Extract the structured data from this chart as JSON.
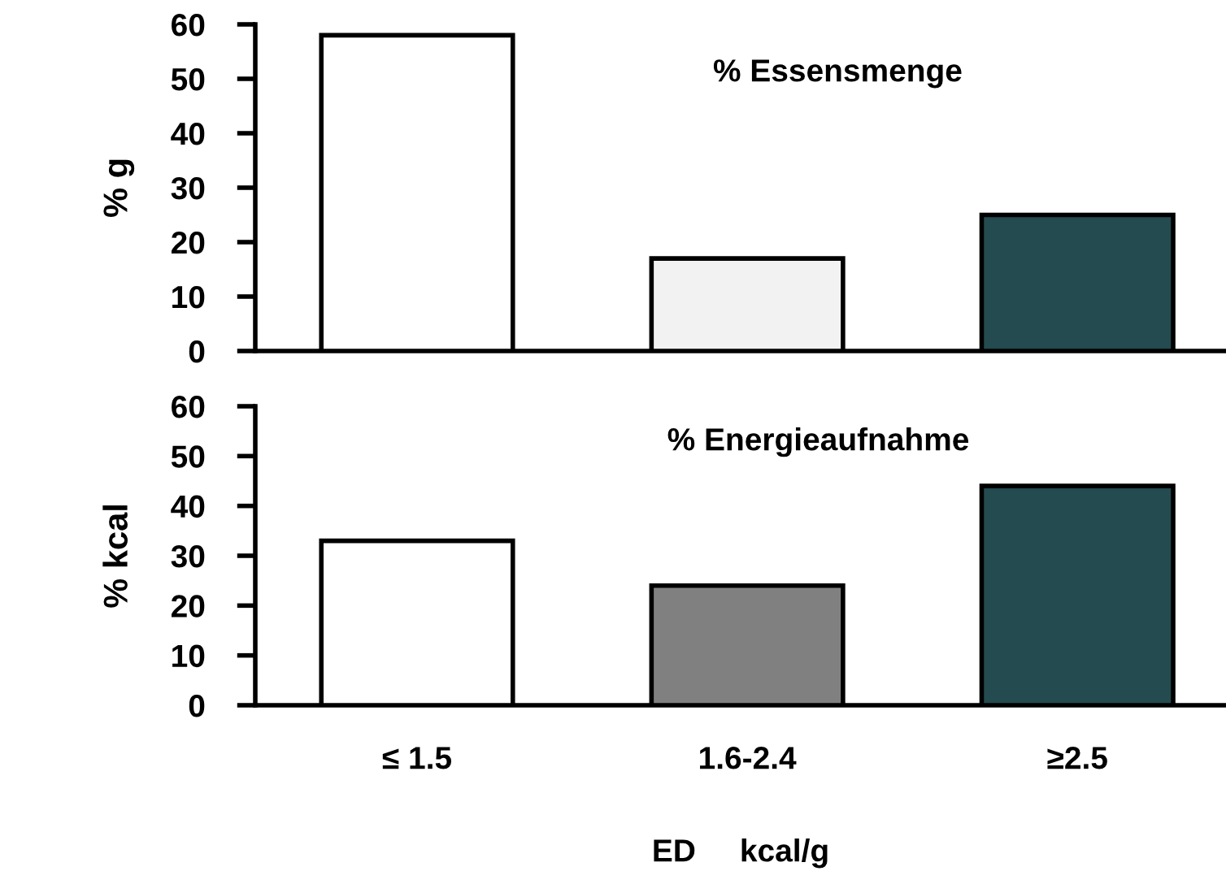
{
  "chart_data": [
    {
      "type": "bar",
      "title": "% Essensmenge",
      "ylabel": "% g",
      "categories": [
        null,
        null,
        null
      ],
      "values": [
        58,
        17,
        25
      ],
      "colors": [
        "#ffffff",
        "#f2f2f2",
        "#244b50"
      ],
      "ylim": [
        0,
        60
      ],
      "yticks": [
        0,
        10,
        20,
        30,
        40,
        50,
        60
      ],
      "tick_labels": "y",
      "grid": false,
      "legend": false
    },
    {
      "type": "bar",
      "title": "% Energieaufnahme",
      "ylabel": "% kcal",
      "xlabel": "ED     kcal/g",
      "categories": [
        "≤ 1.5",
        "1.6-2.4",
        "≥2.5"
      ],
      "values": [
        33,
        24,
        44
      ],
      "colors": [
        "#ffffff",
        "#808080",
        "#244b50"
      ],
      "ylim": [
        0,
        60
      ],
      "yticks": [
        0,
        10,
        20,
        30,
        40,
        50,
        60
      ],
      "grid": false,
      "legend": false
    }
  ]
}
